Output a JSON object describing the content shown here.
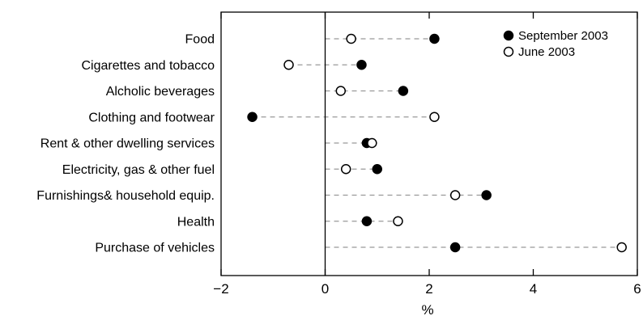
{
  "chart_data": {
    "type": "scatter",
    "orientation": "horizontal-dot-plot",
    "categories": [
      "Food",
      "Cigarettes and tobacco",
      "Alcholic beverages",
      "Clothing and footwear",
      "Rent & other dwelling services",
      "Electricity, gas & other fuel",
      "Furnishings& household equip.",
      "Health",
      "Purchase of vehicles"
    ],
    "series": [
      {
        "name": "September 2003",
        "marker": "filled-circle",
        "color": "#000000",
        "values": [
          2.1,
          0.7,
          1.5,
          -1.4,
          0.8,
          1.0,
          3.1,
          0.8,
          2.5
        ]
      },
      {
        "name": "June 2003",
        "marker": "open-circle",
        "color": "#000000",
        "values": [
          0.5,
          -0.7,
          0.3,
          2.1,
          0.9,
          0.4,
          2.5,
          1.4,
          5.7
        ]
      }
    ],
    "xlabel": "%",
    "xlim": [
      -2,
      6
    ],
    "xticks": [
      -2,
      0,
      2,
      4,
      6
    ],
    "xtick_labels": [
      "−2",
      "0",
      "2",
      "4",
      "6"
    ],
    "connector_style": "dashed",
    "connector_color": "#999999",
    "reference_line_at": 0,
    "legend": {
      "position": "top-right"
    },
    "grid": false
  }
}
